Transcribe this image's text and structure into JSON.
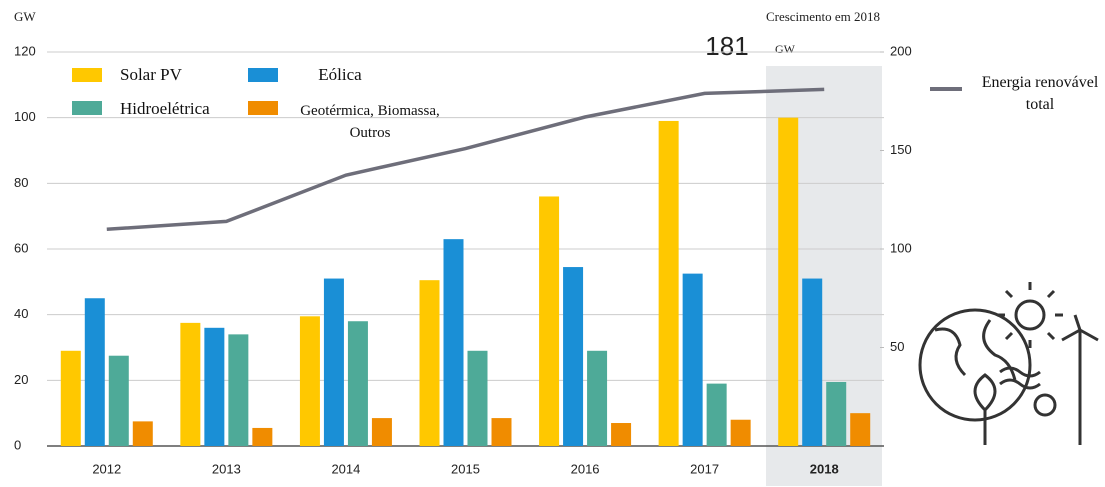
{
  "chart_data": {
    "type": "bar",
    "title": "Crescimento em 2018",
    "y_unit": "GW",
    "annotation": {
      "value": 181,
      "unit": "GW"
    },
    "categories": [
      "2012",
      "2013",
      "2014",
      "2015",
      "2016",
      "2017",
      "2018"
    ],
    "series": [
      {
        "name": "Solar PV",
        "color": "#ffc800",
        "values": [
          29,
          37.5,
          39.5,
          50.5,
          76,
          99,
          100
        ]
      },
      {
        "name": "Eólica",
        "color": "#1a8fd6",
        "values": [
          45,
          36,
          51,
          63,
          54.5,
          52.5,
          51
        ]
      },
      {
        "name": "Hidroelétrica",
        "color": "#4eaa98",
        "values": [
          27.5,
          34,
          38,
          29,
          29,
          19,
          19.5
        ]
      },
      {
        "name": "Geotérmica, Biomassa, Outros",
        "color": "#f08c00",
        "values": [
          7.5,
          5.5,
          8.5,
          8.5,
          7,
          8,
          10
        ]
      },
      {
        "name": "Energia renovável total",
        "color": "#6e6e7a",
        "type": "line",
        "axis": "y2",
        "values": [
          110,
          114,
          137.5,
          151,
          167,
          179,
          181
        ]
      }
    ],
    "ylim": [
      0,
      120
    ],
    "yticks": [
      0,
      20,
      40,
      60,
      80,
      100,
      120
    ],
    "y2lim": [
      0,
      200
    ],
    "y2ticks": [
      50,
      100,
      150,
      200
    ],
    "grid": true
  }
}
